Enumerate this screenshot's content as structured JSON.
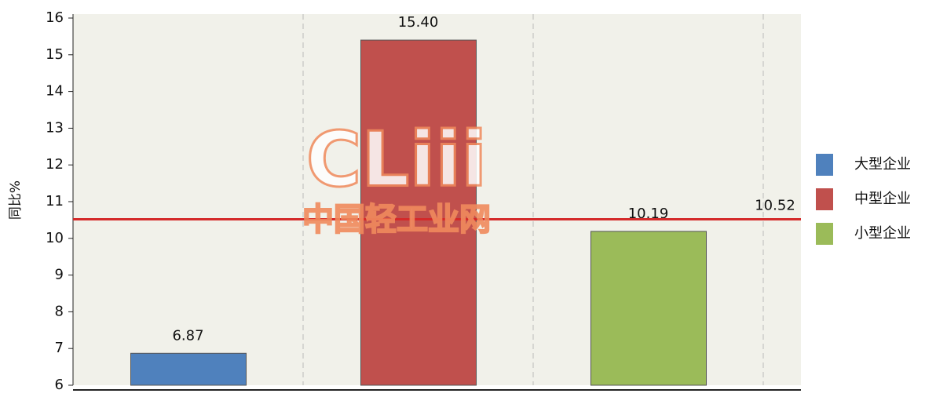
{
  "chart_data": {
    "type": "bar",
    "y_label": "同比%",
    "categories": [
      null,
      null,
      null
    ],
    "series": [
      {
        "name": "大型企业",
        "color": "#4f81bd",
        "values": [
          6.87,
          null,
          null
        ],
        "value_labels": [
          "6.87",
          null,
          null
        ]
      },
      {
        "name": "中型企业",
        "color": "#c0504d",
        "values": [
          null,
          15.4,
          null
        ],
        "value_labels": [
          null,
          "15.40",
          null
        ]
      },
      {
        "name": "小型企业",
        "color": "#9bbb59",
        "values": [
          null,
          null,
          10.19
        ],
        "value_labels": [
          null,
          null,
          "10.19"
        ]
      }
    ],
    "reference_line": {
      "value": 10.52,
      "color": "#d42a2a"
    },
    "ylim": [
      6,
      16
    ],
    "yticks": [
      6,
      7,
      8,
      9,
      10,
      11,
      12,
      13,
      14,
      15,
      16
    ],
    "legend": "right",
    "watermark": {
      "logo": "CLiii",
      "text": "中国轻工业网"
    }
  }
}
